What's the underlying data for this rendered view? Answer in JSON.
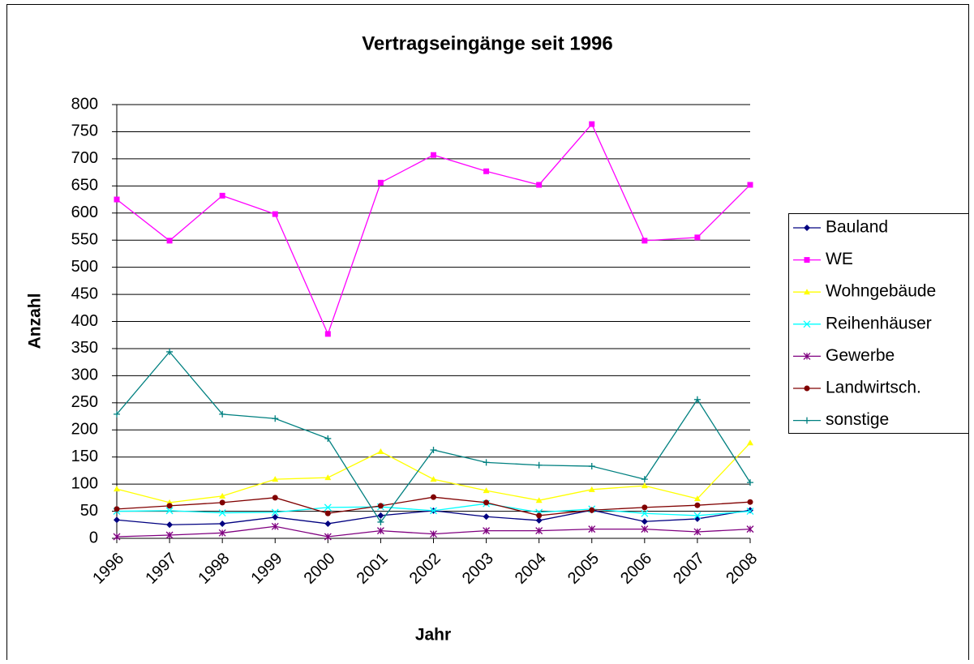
{
  "chart_data": {
    "type": "line",
    "title": "Vertragseingänge seit 1996",
    "x_label": "Jahr",
    "y_label": "Anzahl",
    "categories": [
      "1996",
      "1997",
      "1998",
      "1999",
      "2000",
      "2001",
      "2002",
      "2003",
      "2004",
      "2005",
      "2006",
      "2007",
      "2008"
    ],
    "ylim": [
      0,
      800
    ],
    "yticks": [
      0,
      50,
      100,
      150,
      200,
      250,
      300,
      350,
      400,
      450,
      500,
      550,
      600,
      650,
      700,
      750,
      800
    ],
    "grid": true,
    "legend": "right",
    "series": [
      {
        "name": "Bauland",
        "color": "#000080",
        "marker": "diamond",
        "values": [
          34,
          25,
          27,
          39,
          27,
          42,
          51,
          40,
          33,
          52,
          31,
          36,
          52
        ]
      },
      {
        "name": "WE",
        "color": "#ff00ff",
        "marker": "square",
        "values": [
          625,
          549,
          632,
          598,
          377,
          656,
          707,
          677,
          652,
          764,
          549,
          555,
          652
        ]
      },
      {
        "name": "Wohngebäude",
        "color": "#ffff00",
        "marker": "triangle",
        "values": [
          91,
          66,
          78,
          109,
          112,
          160,
          109,
          88,
          70,
          90,
          97,
          73,
          176
        ]
      },
      {
        "name": "Reihenhäuser",
        "color": "#00ffff",
        "marker": "x",
        "values": [
          50,
          51,
          47,
          48,
          57,
          58,
          51,
          64,
          48,
          54,
          46,
          42,
          50
        ]
      },
      {
        "name": "Gewerbe",
        "color": "#800080",
        "marker": "star",
        "values": [
          3,
          6,
          10,
          22,
          3,
          14,
          8,
          14,
          14,
          17,
          17,
          12,
          17
        ]
      },
      {
        "name": "Landwirtsch.",
        "color": "#800000",
        "marker": "circle",
        "values": [
          54,
          60,
          66,
          75,
          46,
          60,
          76,
          66,
          42,
          52,
          57,
          61,
          67
        ]
      },
      {
        "name": "sonstige",
        "color": "#008080",
        "marker": "plus",
        "values": [
          229,
          344,
          229,
          221,
          184,
          30,
          163,
          140,
          135,
          133,
          109,
          256,
          103
        ]
      }
    ]
  }
}
